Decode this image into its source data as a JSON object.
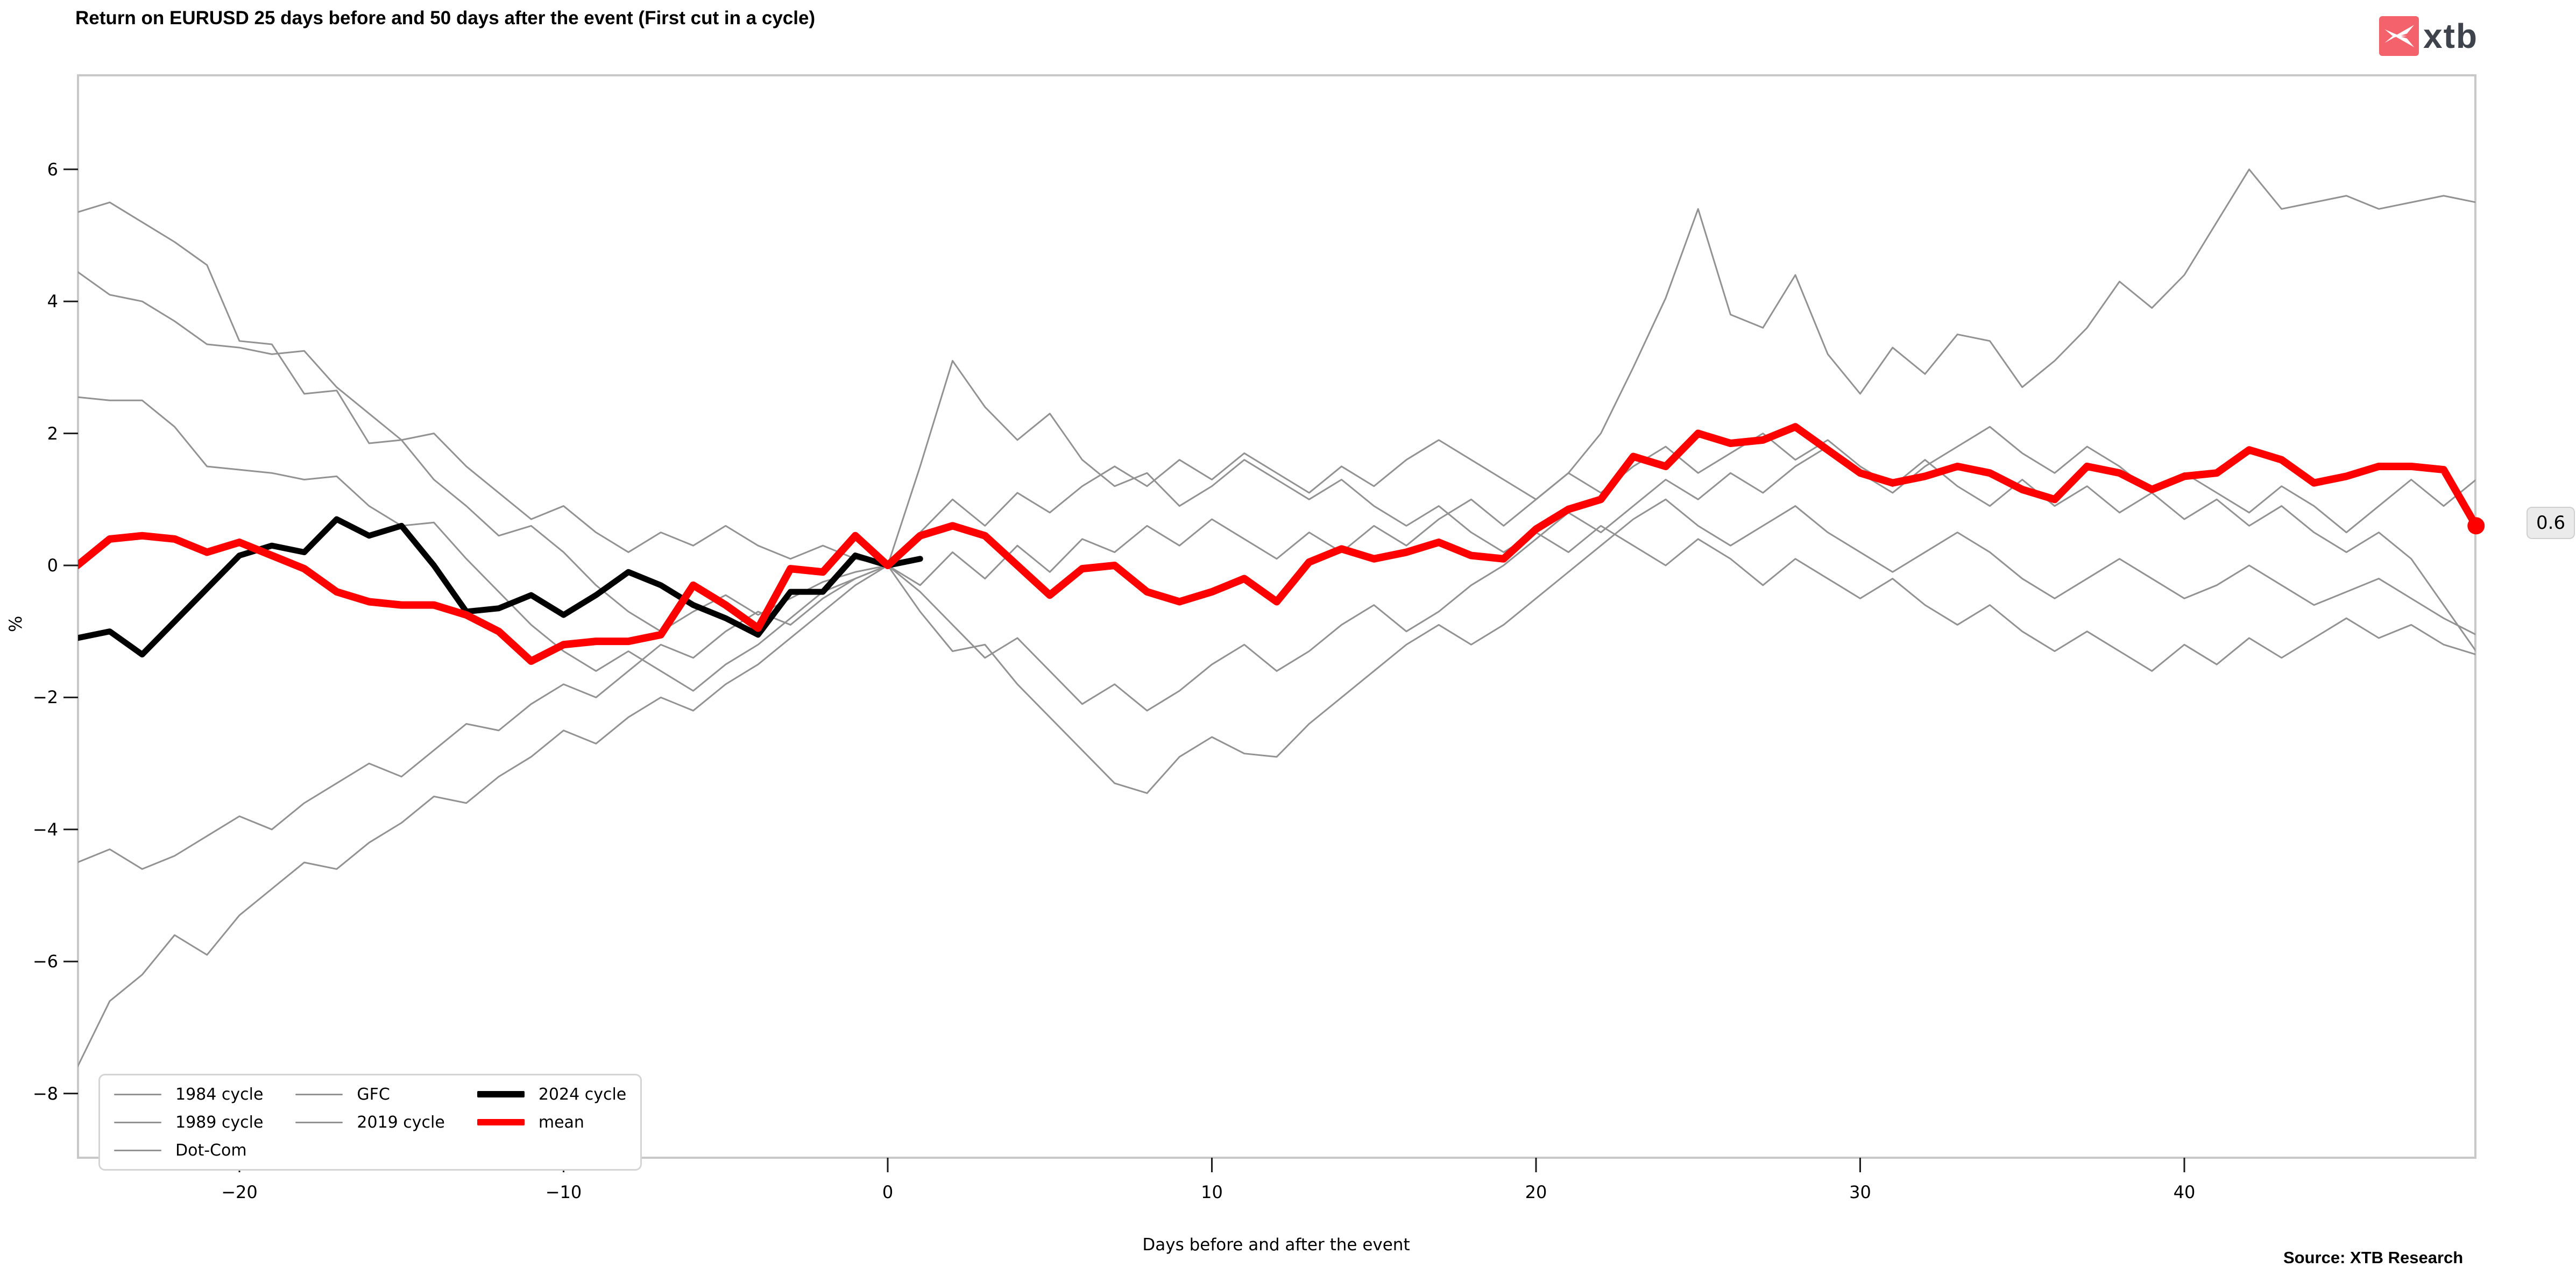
{
  "title": "Return on EURUSD 25 days before and 50 days after the event (First cut in a cycle)",
  "logo": {
    "text": "xtb",
    "square_color": "#f4626b",
    "text_color": "#3f434c"
  },
  "source": "Source: XTB Research",
  "end_annotation": {
    "text": "0.6"
  },
  "axes": {
    "y_label": "%",
    "x_label": "Days before and after the event"
  },
  "chart_data": {
    "type": "line",
    "title": "Return on EURUSD 25 days before and 50 days after the event (First cut in a cycle)",
    "xlabel": "Days before and after the event",
    "ylabel": "%",
    "xlim": [
      -25,
      49
    ],
    "ylim": [
      -9.0,
      7.4
    ],
    "x_ticks": [
      -20,
      -10,
      0,
      10,
      20,
      30,
      40
    ],
    "y_ticks": [
      6,
      4,
      2,
      0,
      -2,
      -4,
      -6,
      -8
    ],
    "grid": false,
    "legend_position": "lower-left",
    "plot_border_color": "#c8c8c8",
    "series": [
      {
        "name": "1984 cycle",
        "color": "#929292",
        "width": 3,
        "x_start": -25,
        "end_dot": false,
        "values": [
          5.35,
          5.5,
          5.2,
          4.9,
          4.55,
          3.4,
          3.35,
          2.6,
          2.65,
          1.85,
          1.9,
          1.3,
          0.9,
          0.45,
          0.6,
          0.2,
          -0.3,
          -0.7,
          -1.0,
          -0.7,
          -0.45,
          -0.75,
          -0.5,
          -0.25,
          -0.1,
          0,
          -0.7,
          -1.3,
          -1.2,
          -1.8,
          -2.3,
          -2.8,
          -3.3,
          -3.45,
          -2.9,
          -2.6,
          -2.85,
          -2.9,
          -2.4,
          -2.0,
          -1.6,
          -1.2,
          -0.9,
          -1.2,
          -0.9,
          -0.5,
          -0.1,
          0.3,
          0.7,
          1.0,
          0.6,
          0.3,
          0.6,
          0.9,
          0.5,
          0.2,
          -0.1,
          0.2,
          0.5,
          0.2,
          -0.2,
          -0.5,
          -0.2,
          0.1,
          -0.2,
          -0.5,
          -0.3,
          0.0,
          -0.3,
          -0.6,
          -0.4,
          -0.2,
          -0.5,
          -0.8,
          -1.05
        ]
      },
      {
        "name": "1989 cycle",
        "color": "#929292",
        "width": 3,
        "x_start": -25,
        "end_dot": false,
        "values": [
          4.45,
          4.1,
          4.0,
          3.7,
          3.35,
          3.3,
          3.2,
          3.25,
          2.7,
          2.3,
          1.9,
          2.0,
          1.5,
          1.1,
          0.7,
          0.9,
          0.5,
          0.2,
          0.5,
          0.3,
          0.6,
          0.3,
          0.1,
          0.3,
          0.1,
          0,
          0.5,
          1.0,
          0.6,
          1.1,
          0.8,
          1.2,
          1.5,
          1.2,
          1.6,
          1.3,
          1.7,
          1.4,
          1.1,
          1.5,
          1.2,
          1.6,
          1.9,
          1.6,
          1.3,
          1.0,
          1.4,
          2.0,
          3.0,
          4.05,
          5.4,
          3.8,
          3.6,
          4.4,
          3.2,
          2.6,
          3.3,
          2.9,
          3.5,
          3.4,
          2.7,
          3.1,
          3.6,
          4.3,
          3.9,
          4.4,
          5.2,
          6.0,
          5.4,
          5.5,
          5.6,
          5.4,
          5.5,
          5.6,
          5.5
        ]
      },
      {
        "name": "Dot-Com",
        "color": "#929292",
        "width": 3,
        "x_start": -25,
        "end_dot": false,
        "values": [
          2.55,
          2.5,
          2.5,
          2.1,
          1.5,
          1.45,
          1.4,
          1.3,
          1.35,
          0.9,
          0.6,
          0.65,
          0.1,
          -0.4,
          -0.9,
          -1.3,
          -1.6,
          -1.3,
          -1.6,
          -1.9,
          -1.5,
          -1.2,
          -0.8,
          -0.4,
          -0.2,
          0,
          1.5,
          3.1,
          2.4,
          1.9,
          2.3,
          1.6,
          1.2,
          1.4,
          0.9,
          1.2,
          1.6,
          1.3,
          1.0,
          1.3,
          0.9,
          0.6,
          0.9,
          0.5,
          0.2,
          0.5,
          0.2,
          0.6,
          0.3,
          0.0,
          0.4,
          0.1,
          -0.3,
          0.1,
          -0.2,
          -0.5,
          -0.2,
          -0.6,
          -0.9,
          -0.6,
          -1.0,
          -1.3,
          -1.0,
          -1.3,
          -1.6,
          -1.2,
          -1.5,
          -1.1,
          -1.4,
          -1.1,
          -0.8,
          -1.1,
          -0.9,
          -1.2,
          -1.35
        ]
      },
      {
        "name": "GFC",
        "color": "#929292",
        "width": 3,
        "x_start": -25,
        "end_dot": false,
        "values": [
          -4.5,
          -4.3,
          -4.6,
          -4.4,
          -4.1,
          -3.8,
          -4.0,
          -3.6,
          -3.3,
          -3.0,
          -3.2,
          -2.8,
          -2.4,
          -2.5,
          -2.1,
          -1.8,
          -2.0,
          -1.6,
          -1.2,
          -1.4,
          -1.0,
          -0.7,
          -0.9,
          -0.5,
          -0.2,
          0,
          -0.3,
          0.2,
          -0.2,
          0.3,
          -0.1,
          0.4,
          0.2,
          0.6,
          0.3,
          0.7,
          0.4,
          0.1,
          0.5,
          0.2,
          0.6,
          0.3,
          0.7,
          1.0,
          0.6,
          1.0,
          1.4,
          1.1,
          1.5,
          1.8,
          1.4,
          1.7,
          2.0,
          1.6,
          1.9,
          1.5,
          1.2,
          1.6,
          1.2,
          0.9,
          1.3,
          0.9,
          1.2,
          0.8,
          1.1,
          0.7,
          1.0,
          0.6,
          0.9,
          0.5,
          0.2,
          0.5,
          0.1,
          -0.6,
          -1.3
        ]
      },
      {
        "name": "2019 cycle",
        "color": "#929292",
        "width": 3,
        "x_start": -25,
        "end_dot": false,
        "values": [
          -7.6,
          -6.6,
          -6.2,
          -5.6,
          -5.9,
          -5.3,
          -4.9,
          -4.5,
          -4.6,
          -4.2,
          -3.9,
          -3.5,
          -3.6,
          -3.2,
          -2.9,
          -2.5,
          -2.7,
          -2.3,
          -2.0,
          -2.2,
          -1.8,
          -1.5,
          -1.1,
          -0.7,
          -0.3,
          0,
          -0.4,
          -0.9,
          -1.4,
          -1.1,
          -1.6,
          -2.1,
          -1.8,
          -2.2,
          -1.9,
          -1.5,
          -1.2,
          -1.6,
          -1.3,
          -0.9,
          -0.6,
          -1.0,
          -0.7,
          -0.3,
          0.0,
          0.4,
          0.8,
          0.5,
          0.9,
          1.3,
          1.0,
          1.4,
          1.1,
          1.5,
          1.8,
          1.4,
          1.1,
          1.5,
          1.8,
          2.1,
          1.7,
          1.4,
          1.8,
          1.5,
          1.1,
          1.4,
          1.1,
          0.8,
          1.2,
          0.9,
          0.5,
          0.9,
          1.3,
          0.9,
          1.3
        ]
      },
      {
        "name": "2024 cycle",
        "color": "#000000",
        "width": 11,
        "x_start": -25,
        "end_dot": false,
        "values": [
          -1.1,
          -1.0,
          -1.35,
          -0.85,
          -0.35,
          0.15,
          0.3,
          0.2,
          0.7,
          0.45,
          0.6,
          0.0,
          -0.7,
          -0.65,
          -0.45,
          -0.75,
          -0.45,
          -0.1,
          -0.3,
          -0.6,
          -0.8,
          -1.05,
          -0.4,
          -0.4,
          0.15,
          0.0,
          0.1
        ]
      },
      {
        "name": "mean",
        "color": "#fe0000",
        "width": 14,
        "x_start": -25,
        "end_dot": true,
        "values": [
          0.0,
          0.4,
          0.45,
          0.4,
          0.2,
          0.35,
          0.15,
          -0.05,
          -0.4,
          -0.55,
          -0.6,
          -0.6,
          -0.75,
          -1.0,
          -1.45,
          -1.2,
          -1.15,
          -1.15,
          -1.05,
          -0.3,
          -0.6,
          -0.95,
          -0.05,
          -0.1,
          0.45,
          0.0,
          0.45,
          0.6,
          0.45,
          0.0,
          -0.45,
          -0.05,
          0.0,
          -0.4,
          -0.55,
          -0.4,
          -0.2,
          -0.55,
          0.05,
          0.25,
          0.1,
          0.2,
          0.35,
          0.15,
          0.1,
          0.55,
          0.85,
          1.0,
          1.65,
          1.5,
          2.0,
          1.85,
          1.9,
          2.1,
          1.75,
          1.4,
          1.25,
          1.35,
          1.5,
          1.4,
          1.15,
          1.0,
          1.5,
          1.4,
          1.15,
          1.35,
          1.4,
          1.75,
          1.6,
          1.25,
          1.35,
          1.5,
          1.5,
          1.45,
          0.6
        ]
      }
    ]
  },
  "legend": {
    "columns": [
      [
        {
          "label": "1984 cycle",
          "color": "#929292",
          "lw": 3
        },
        {
          "label": "1989 cycle",
          "color": "#929292",
          "lw": 3
        },
        {
          "label": "Dot-Com",
          "color": "#929292",
          "lw": 3
        }
      ],
      [
        {
          "label": "GFC",
          "color": "#929292",
          "lw": 3
        },
        {
          "label": "2019 cycle",
          "color": "#929292",
          "lw": 3
        }
      ],
      [
        {
          "label": "2024 cycle",
          "color": "#000000",
          "lw": 12
        },
        {
          "label": "mean",
          "color": "#fe0000",
          "lw": 12
        }
      ]
    ]
  }
}
